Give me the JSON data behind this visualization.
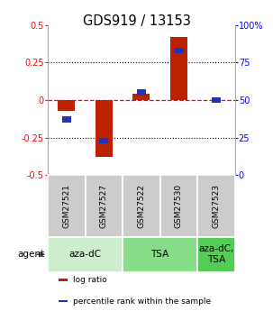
{
  "title": "GDS919 / 13153",
  "samples": [
    "GSM27521",
    "GSM27527",
    "GSM27522",
    "GSM27530",
    "GSM27523"
  ],
  "log_ratios": [
    -0.07,
    -0.38,
    0.04,
    0.42,
    0.0
  ],
  "percentile_ranks": [
    37,
    23,
    55,
    83,
    50
  ],
  "ylim_left": [
    -0.5,
    0.5
  ],
  "ylim_right": [
    0,
    100
  ],
  "yticks_left": [
    -0.5,
    -0.25,
    0,
    0.25,
    0.5
  ],
  "yticks_right": [
    0,
    25,
    50,
    75,
    100
  ],
  "ytick_labels_left": [
    "-0.5",
    "-0.25",
    "0",
    "0.25",
    "0.5"
  ],
  "ytick_labels_right": [
    "0",
    "25",
    "50",
    "75",
    "100%"
  ],
  "hline_values": [
    -0.25,
    0,
    0.25
  ],
  "bar_color_red": "#bb2200",
  "bar_color_blue": "#2233bb",
  "agent_groups": [
    {
      "label": "aza-dC",
      "samples": [
        "GSM27521",
        "GSM27527"
      ],
      "color": "#cceecc"
    },
    {
      "label": "TSA",
      "samples": [
        "GSM27522",
        "GSM27530"
      ],
      "color": "#88dd88"
    },
    {
      "label": "aza-dC,\nTSA",
      "samples": [
        "GSM27523"
      ],
      "color": "#55cc55"
    }
  ],
  "legend_red": "log ratio",
  "legend_blue": "percentile rank within the sample",
  "agent_label": "agent",
  "bar_width": 0.45,
  "blue_bar_width": 0.25,
  "blue_bar_height": 0.038,
  "sample_bg_color": "#cccccc",
  "plot_bg_color": "#ffffff",
  "title_fontsize": 10.5,
  "tick_fontsize": 7,
  "sample_fontsize": 6.5,
  "agent_fontsize": 7.5,
  "legend_fontsize": 6.5
}
